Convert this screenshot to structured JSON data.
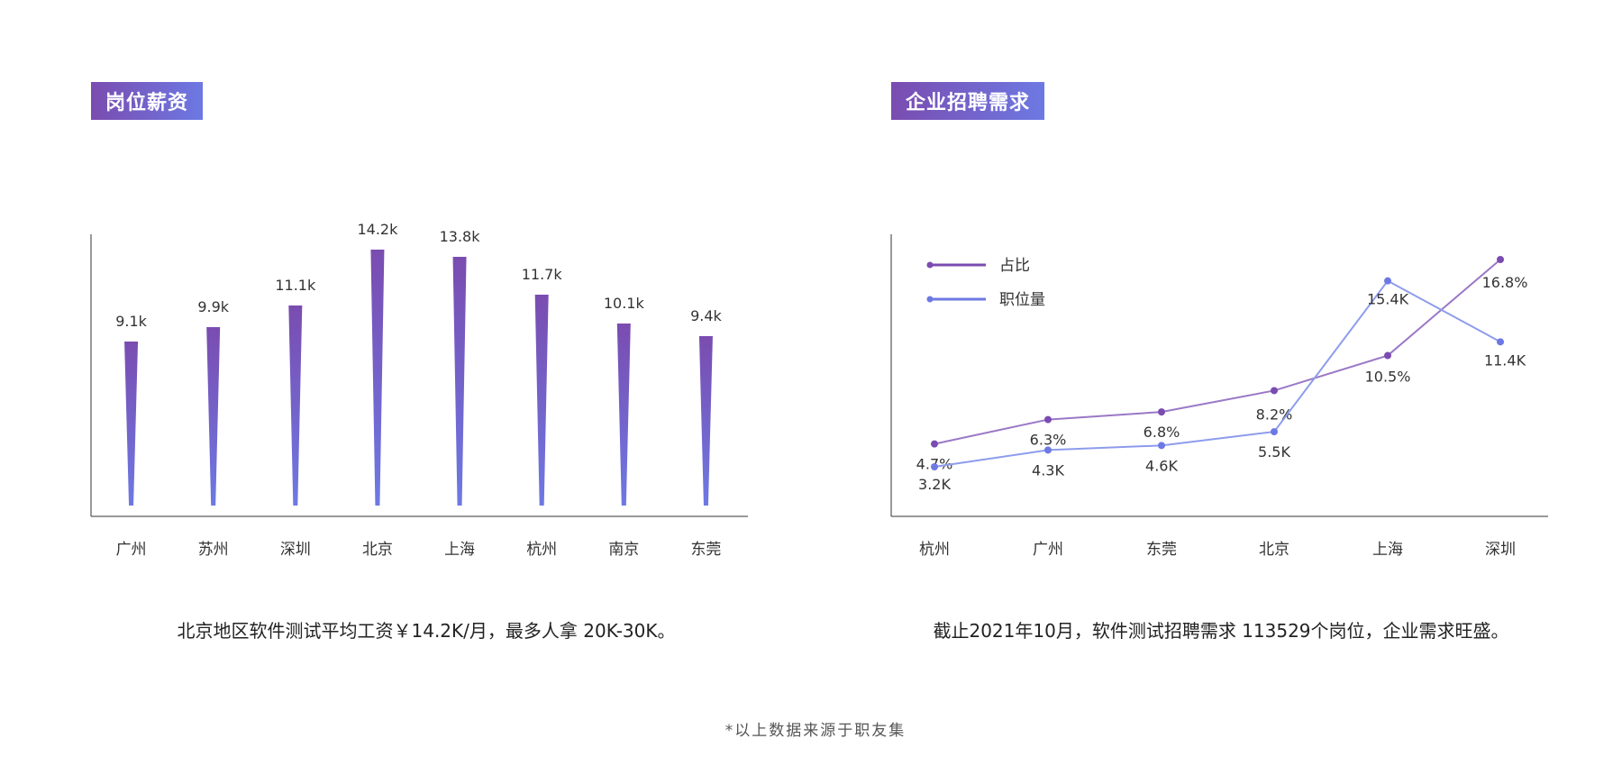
{
  "left_section": {
    "tag": "岗位薪资",
    "caption": "北京地区软件测试平均工资￥14.2K/月，最多人拿 20K-30K。"
  },
  "right_section": {
    "tag": "企业招聘需求",
    "caption": "截止2021年10月，软件测试招聘需求 113529个岗位，企业需求旺盛。"
  },
  "footnote": "*以上数据来源于职友集",
  "colors": {
    "purple": "#7a4cb0",
    "blue": "#6d79e3",
    "line_purple": "#9a78c6",
    "line_blue": "#8d9cec",
    "axis": "#333333"
  },
  "chart_data": [
    {
      "type": "bar",
      "categories": [
        "广州",
        "苏州",
        "深圳",
        "北京",
        "上海",
        "杭州",
        "南京",
        "东莞"
      ],
      "values": [
        9.1,
        9.9,
        11.1,
        14.2,
        13.8,
        11.7,
        10.1,
        9.4
      ],
      "data_labels": [
        "9.1k",
        "9.9k",
        "11.1k",
        "14.2k",
        "13.8k",
        "11.7k",
        "10.1k",
        "9.4k"
      ],
      "ylim": [
        0,
        15
      ],
      "grid": false,
      "bar_style": "tapered"
    },
    {
      "type": "line",
      "categories": [
        "杭州",
        "广州",
        "东莞",
        "北京",
        "上海",
        "深圳"
      ],
      "series": [
        {
          "name": "占比",
          "values": [
            4.7,
            6.3,
            6.8,
            8.2,
            10.5,
            16.8
          ],
          "labels": [
            "4.7%",
            "6.3%",
            "6.8%",
            "8.2%",
            "10.5%",
            "16.8%"
          ],
          "color": "#9a78c6",
          "marker_color": "#7a4cb0"
        },
        {
          "name": "职位量",
          "values": [
            3.2,
            4.3,
            4.6,
            5.5,
            15.4,
            11.4
          ],
          "labels": [
            "3.2K",
            "4.3K",
            "4.6K",
            "5.5K",
            "15.4K",
            "11.4K"
          ],
          "color": "#8d9cec",
          "marker_color": "#6d79e3"
        }
      ],
      "legend_position": "top-left",
      "grid": false
    }
  ]
}
